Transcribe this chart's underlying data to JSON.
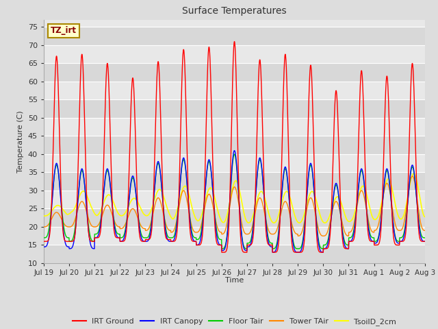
{
  "title": "Surface Temperatures",
  "ylabel": "Temperature (C)",
  "xlabel": "Time",
  "annotation": "TZ_irt",
  "annotation_color": "#880000",
  "annotation_bg": "#ffffcc",
  "annotation_border": "#aa8800",
  "ylim": [
    10,
    77
  ],
  "yticks": [
    10,
    15,
    20,
    25,
    30,
    35,
    40,
    45,
    50,
    55,
    60,
    65,
    70,
    75
  ],
  "date_labels": [
    "Jul 19",
    "Jul 20",
    "Jul 21",
    "Jul 22",
    "Jul 23",
    "Jul 24",
    "Jul 25",
    "Jul 26",
    "Jul 27",
    "Jul 28",
    "Jul 29",
    "Jul 30",
    "Jul 31",
    "Aug 1",
    "Aug 2",
    "Aug 3"
  ],
  "colors": {
    "IRT Ground": "#ff0000",
    "IRT Canopy": "#0000ff",
    "Floor Tair": "#00cc00",
    "Tower TAir": "#ff8800",
    "TsoilD_2cm": "#ffff00"
  },
  "fig_bg": "#dddddd",
  "plot_bg": "#e8e8e8",
  "band_colors": [
    "#d8d8d8",
    "#e8e8e8"
  ],
  "n_days": 15,
  "pts_per_day": 144,
  "irt_ground_peaks": [
    67,
    67.5,
    65,
    61,
    65.5,
    68.8,
    69.5,
    71,
    66,
    67.5,
    64.5,
    57.5,
    63,
    61.5,
    65
  ],
  "irt_ground_mins": [
    16,
    16,
    17,
    16,
    16.5,
    16,
    15,
    13,
    15,
    13,
    13,
    14,
    16,
    15,
    16
  ],
  "canopy_peaks": [
    37.5,
    36,
    36,
    34,
    38,
    39,
    38.5,
    41,
    39,
    36.5,
    37.5,
    32,
    36,
    36,
    37
  ],
  "canopy_mins": [
    14.5,
    14,
    17,
    16,
    16,
    16,
    15,
    13.5,
    14.5,
    13,
    13,
    14,
    16,
    15.5,
    16
  ],
  "floor_peaks": [
    37,
    35.5,
    35.5,
    33.5,
    37.5,
    38.5,
    38,
    40,
    38.5,
    36,
    37,
    31.5,
    35.5,
    35.5,
    36.5
  ],
  "floor_mins": [
    17,
    16,
    18,
    17,
    17,
    17,
    16.5,
    14,
    15.5,
    14,
    14,
    15,
    17,
    16,
    17
  ],
  "tower_peaks": [
    24,
    27,
    26,
    25,
    28,
    30,
    29,
    31,
    28,
    27,
    28,
    27,
    30,
    32,
    34
  ],
  "tower_mins": [
    20,
    20,
    20,
    19.5,
    19,
    18.5,
    18.5,
    18,
    18,
    18,
    17.5,
    17.5,
    18.5,
    19,
    19
  ],
  "soil_peaks": [
    26,
    30,
    29,
    28,
    30.5,
    31.5,
    31,
    33,
    30,
    30,
    30,
    28.5,
    31.5,
    33.5,
    35
  ],
  "soil_mins": [
    23,
    24,
    23,
    23,
    23,
    22,
    21.5,
    21,
    21,
    21,
    21,
    21,
    21.5,
    22,
    22
  ],
  "initial_soil": 25.5
}
